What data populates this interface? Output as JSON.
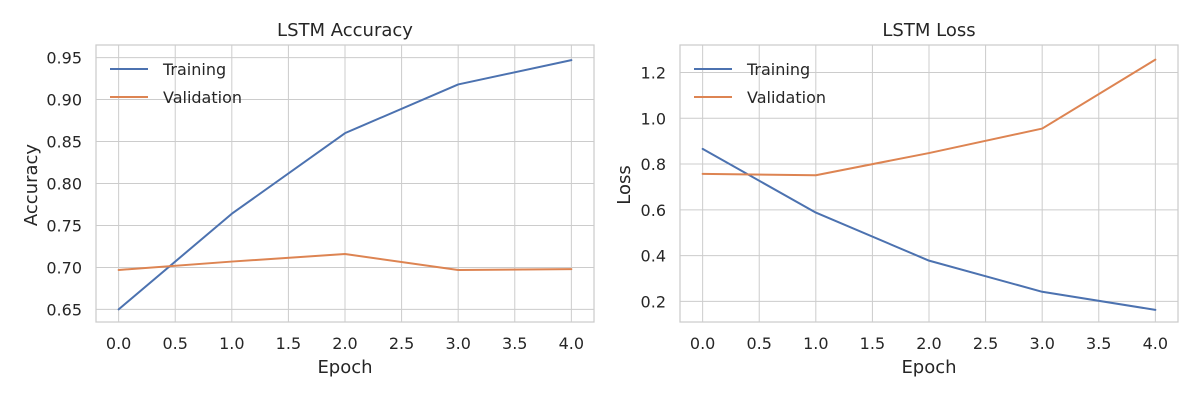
{
  "chart_data": [
    {
      "type": "line",
      "title": "LSTM Accuracy",
      "xlabel": "Epoch",
      "ylabel": "Accuracy",
      "x": [
        0,
        1,
        2,
        3,
        4
      ],
      "xlim": [
        -0.2,
        4.2
      ],
      "ylim": [
        0.635,
        0.965
      ],
      "xticks": [
        0.0,
        0.5,
        1.0,
        1.5,
        2.0,
        2.5,
        3.0,
        3.5,
        4.0
      ],
      "xtick_labels": [
        "0.0",
        "0.5",
        "1.0",
        "1.5",
        "2.0",
        "2.5",
        "3.0",
        "3.5",
        "4.0"
      ],
      "yticks": [
        0.65,
        0.7,
        0.75,
        0.8,
        0.85,
        0.9,
        0.95
      ],
      "ytick_labels": [
        "0.65",
        "0.70",
        "0.75",
        "0.80",
        "0.85",
        "0.90",
        "0.95"
      ],
      "grid": true,
      "legend_position": "top-left",
      "series": [
        {
          "name": "Training",
          "color": "#4c72b0",
          "values": [
            0.65,
            0.764,
            0.86,
            0.918,
            0.947
          ]
        },
        {
          "name": "Validation",
          "color": "#dd8452",
          "values": [
            0.697,
            0.707,
            0.716,
            0.697,
            0.698
          ]
        }
      ]
    },
    {
      "type": "line",
      "title": "LSTM Loss",
      "xlabel": "Epoch",
      "ylabel": "Loss",
      "x": [
        0,
        1,
        2,
        3,
        4
      ],
      "xlim": [
        -0.2,
        4.2
      ],
      "ylim": [
        0.11,
        1.32
      ],
      "xticks": [
        0.0,
        0.5,
        1.0,
        1.5,
        2.0,
        2.5,
        3.0,
        3.5,
        4.0
      ],
      "xtick_labels": [
        "0.0",
        "0.5",
        "1.0",
        "1.5",
        "2.0",
        "2.5",
        "3.0",
        "3.5",
        "4.0"
      ],
      "yticks": [
        0.2,
        0.4,
        0.6,
        0.8,
        1.0,
        1.2
      ],
      "ytick_labels": [
        "0.2",
        "0.4",
        "0.6",
        "0.8",
        "1.0",
        "1.2"
      ],
      "grid": true,
      "legend_position": "top-left",
      "series": [
        {
          "name": "Training",
          "color": "#4c72b0",
          "values": [
            0.866,
            0.588,
            0.378,
            0.242,
            0.163
          ]
        },
        {
          "name": "Validation",
          "color": "#dd8452",
          "values": [
            0.757,
            0.751,
            0.848,
            0.955,
            1.256
          ]
        }
      ]
    }
  ]
}
